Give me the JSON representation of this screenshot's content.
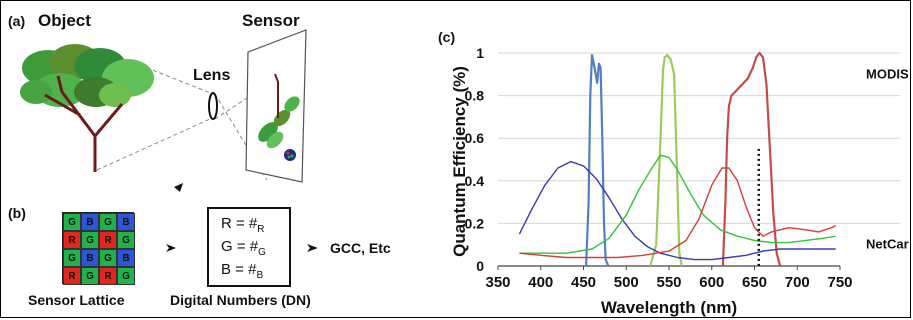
{
  "panel_a": {
    "tag": "(a)",
    "object_label": "Object",
    "sensor_label": "Sensor",
    "lens_label": "Lens"
  },
  "panel_b": {
    "tag": "(b)",
    "lattice_label": "Sensor Lattice",
    "lattice": [
      [
        "G",
        "B",
        "G",
        "B"
      ],
      [
        "R",
        "G",
        "R",
        "G"
      ],
      [
        "G",
        "B",
        "G",
        "B"
      ],
      [
        "R",
        "G",
        "R",
        "G"
      ]
    ],
    "dn_label": "Digital Numbers (DN)",
    "dn_lines": [
      {
        "main": "R = #",
        "sub": "R"
      },
      {
        "main": "G = #",
        "sub": "G"
      },
      {
        "main": "B = #",
        "sub": "B"
      }
    ],
    "output_label": "GCC, Etc"
  },
  "panel_c": {
    "tag": "(c)",
    "modis_label": "MODIS",
    "netcam_label": "NetCar"
  },
  "chart_data": {
    "type": "line",
    "title": "",
    "xlabel": "Wavelength (nm)",
    "ylabel": "Quantum Efficiency (%)",
    "xlim": [
      350,
      750
    ],
    "ylim": [
      0,
      1
    ],
    "xticks": [
      350,
      400,
      450,
      500,
      550,
      600,
      650,
      700,
      750
    ],
    "yticks": [
      0,
      0.2,
      0.4,
      0.6,
      0.8,
      1
    ],
    "ytick_labels": [
      "0",
      "0.2",
      "0.4",
      "0.6",
      "0.8",
      "1"
    ],
    "grid": "horizontal",
    "vertical_marker": {
      "x": 655,
      "style": "dotted"
    },
    "series": [
      {
        "group": "MODIS",
        "color": "#4f7fc4",
        "x": [
          453,
          456,
          458,
          460,
          463,
          466,
          468,
          470,
          472,
          474,
          476,
          479
        ],
        "y": [
          0.0,
          0.3,
          0.8,
          0.99,
          0.93,
          0.86,
          0.95,
          0.93,
          0.6,
          0.2,
          0.03,
          0.0
        ]
      },
      {
        "group": "MODIS",
        "color": "#9ccb5c",
        "x": [
          528,
          535,
          540,
          543,
          545,
          548,
          552,
          556,
          559,
          562,
          565
        ],
        "y": [
          0.0,
          0.1,
          0.6,
          0.92,
          0.98,
          0.99,
          0.97,
          0.9,
          0.5,
          0.06,
          0.0
        ]
      },
      {
        "group": "MODIS",
        "color": "#c24c4c",
        "x": [
          613,
          616,
          618,
          620,
          623,
          628,
          635,
          642,
          648,
          652,
          656,
          660,
          664,
          668,
          672,
          676,
          680
        ],
        "y": [
          0.0,
          0.3,
          0.6,
          0.75,
          0.8,
          0.82,
          0.85,
          0.88,
          0.93,
          0.98,
          1.0,
          0.98,
          0.85,
          0.55,
          0.25,
          0.06,
          0.0
        ]
      },
      {
        "group": "NetCam",
        "color": "#3b3bb2",
        "x": [
          375,
          390,
          405,
          420,
          435,
          450,
          465,
          480,
          495,
          510,
          525,
          540,
          560,
          580,
          600,
          620,
          640,
          660,
          680,
          700,
          720,
          745
        ],
        "y": [
          0.15,
          0.27,
          0.38,
          0.46,
          0.49,
          0.47,
          0.41,
          0.32,
          0.22,
          0.14,
          0.09,
          0.06,
          0.04,
          0.03,
          0.03,
          0.04,
          0.05,
          0.07,
          0.08,
          0.08,
          0.08,
          0.08
        ]
      },
      {
        "group": "NetCam",
        "color": "#35c23a",
        "x": [
          375,
          400,
          430,
          460,
          480,
          500,
          515,
          530,
          540,
          550,
          560,
          575,
          590,
          610,
          630,
          650,
          670,
          690,
          710,
          730,
          745
        ],
        "y": [
          0.06,
          0.06,
          0.06,
          0.08,
          0.13,
          0.24,
          0.36,
          0.46,
          0.52,
          0.51,
          0.45,
          0.34,
          0.24,
          0.17,
          0.14,
          0.12,
          0.11,
          0.11,
          0.12,
          0.13,
          0.14
        ]
      },
      {
        "group": "NetCam",
        "color": "#d0403b",
        "x": [
          375,
          400,
          430,
          460,
          490,
          520,
          550,
          570,
          585,
          600,
          612,
          620,
          630,
          640,
          650,
          660,
          670,
          690,
          710,
          725,
          740,
          745
        ],
        "y": [
          0.06,
          0.05,
          0.04,
          0.04,
          0.04,
          0.05,
          0.07,
          0.12,
          0.22,
          0.38,
          0.46,
          0.46,
          0.4,
          0.28,
          0.18,
          0.14,
          0.16,
          0.18,
          0.17,
          0.16,
          0.18,
          0.19
        ]
      }
    ]
  }
}
